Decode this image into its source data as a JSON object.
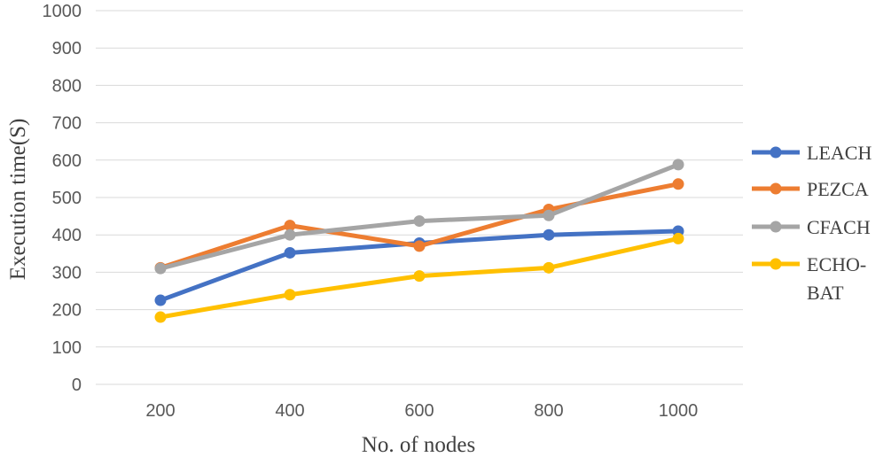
{
  "chart_data": {
    "type": "line",
    "title": "",
    "xlabel": "No. of nodes",
    "ylabel": "Execution  time(S)",
    "x": [
      "200",
      "400",
      "600",
      "800",
      "1000"
    ],
    "ylim": [
      0,
      1000
    ],
    "yticks": [
      "0",
      "100",
      "200",
      "300",
      "400",
      "500",
      "600",
      "700",
      "800",
      "900",
      "1000"
    ],
    "grid": true,
    "legend_position": "right",
    "series": [
      {
        "name": "LEACH",
        "color": "#4472c4",
        "values": [
          225,
          352,
          378,
          400,
          410
        ]
      },
      {
        "name": "PEZCA",
        "color": "#ed7d31",
        "values": [
          312,
          425,
          370,
          468,
          536
        ]
      },
      {
        "name": "CFACH",
        "color": "#a5a5a5",
        "values": [
          310,
          400,
          437,
          452,
          588
        ]
      },
      {
        "name": "ECHO-BAT",
        "legend_lines": [
          "ECHO-",
          "BAT"
        ],
        "color": "#ffc000",
        "values": [
          180,
          240,
          290,
          312,
          390
        ]
      }
    ]
  }
}
